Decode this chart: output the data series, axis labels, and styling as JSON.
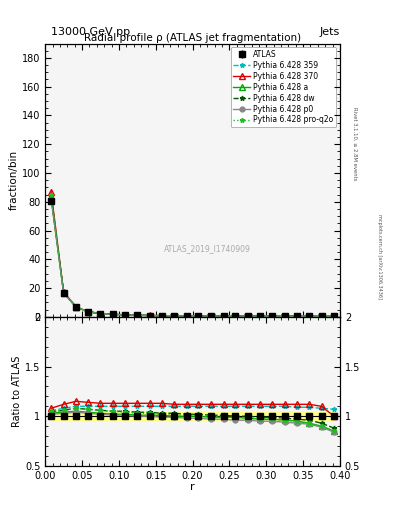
{
  "title_top": "13000 GeV pp",
  "title_top_right": "Jets",
  "title_main": "Radial profile ρ (ATLAS jet fragmentation)",
  "ylabel_main": "fraction/bin",
  "ylabel_ratio": "Ratio to ATLAS",
  "xlabel": "r",
  "watermark": "ATLAS_2019_I1740909",
  "right_label": "Rivet 3.1.10, ≥ 2.8M events",
  "right_label2": "mcplots.cern.ch [arXiv:1306.3436]",
  "r_values": [
    0.008,
    0.025,
    0.042,
    0.058,
    0.075,
    0.092,
    0.108,
    0.125,
    0.142,
    0.158,
    0.175,
    0.192,
    0.208,
    0.225,
    0.242,
    0.258,
    0.275,
    0.292,
    0.308,
    0.325,
    0.342,
    0.358,
    0.375,
    0.392
  ],
  "atlas_y": [
    80.5,
    16.5,
    6.5,
    3.5,
    2.2,
    1.7,
    1.4,
    1.1,
    0.9,
    0.8,
    0.7,
    0.65,
    0.6,
    0.55,
    0.5,
    0.48,
    0.45,
    0.42,
    0.4,
    0.38,
    0.36,
    0.34,
    0.32,
    0.3
  ],
  "atlas_yerr": [
    2.0,
    0.5,
    0.2,
    0.1,
    0.07,
    0.05,
    0.04,
    0.03,
    0.03,
    0.02,
    0.02,
    0.02,
    0.02,
    0.02,
    0.02,
    0.02,
    0.02,
    0.01,
    0.01,
    0.01,
    0.01,
    0.01,
    0.01,
    0.01
  ],
  "atlas_color": "#000000",
  "py359_y": [
    85.0,
    17.0,
    6.8,
    3.6,
    2.25,
    1.72,
    1.42,
    1.12,
    0.92,
    0.82,
    0.72,
    0.67,
    0.62,
    0.57,
    0.52,
    0.5,
    0.47,
    0.44,
    0.42,
    0.4,
    0.38,
    0.36,
    0.34,
    0.31
  ],
  "py359_color": "#00BBBB",
  "py359_label": "Pythia 6.428 359",
  "py370_y": [
    87.0,
    17.2,
    6.9,
    3.65,
    2.28,
    1.75,
    1.44,
    1.14,
    0.94,
    0.84,
    0.73,
    0.68,
    0.63,
    0.58,
    0.53,
    0.51,
    0.48,
    0.45,
    0.43,
    0.41,
    0.39,
    0.37,
    0.35,
    0.32
  ],
  "py370_color": "#DD0000",
  "py370_label": "Pythia 6.428 370",
  "pya_y": [
    83.0,
    16.8,
    6.7,
    3.55,
    2.22,
    1.7,
    1.4,
    1.1,
    0.9,
    0.8,
    0.7,
    0.65,
    0.6,
    0.55,
    0.5,
    0.48,
    0.45,
    0.42,
    0.4,
    0.38,
    0.36,
    0.34,
    0.32,
    0.29
  ],
  "pya_color": "#00AA00",
  "pya_label": "Pythia 6.428 a",
  "pydw_y": [
    84.0,
    16.9,
    6.75,
    3.58,
    2.23,
    1.71,
    1.41,
    1.11,
    0.91,
    0.81,
    0.71,
    0.66,
    0.61,
    0.56,
    0.51,
    0.49,
    0.46,
    0.43,
    0.41,
    0.39,
    0.37,
    0.35,
    0.33,
    0.3
  ],
  "pydw_color": "#005500",
  "pydw_label": "Pythia 6.428 dw",
  "pyp0_y": [
    82.0,
    16.6,
    6.6,
    3.52,
    2.2,
    1.68,
    1.39,
    1.09,
    0.89,
    0.79,
    0.69,
    0.64,
    0.59,
    0.54,
    0.49,
    0.47,
    0.44,
    0.41,
    0.39,
    0.37,
    0.35,
    0.33,
    0.31,
    0.28
  ],
  "pyp0_color": "#888888",
  "pyp0_label": "Pythia 6.428 p0",
  "pyproq2o_y": [
    84.5,
    16.8,
    6.72,
    3.57,
    2.22,
    1.7,
    1.4,
    1.1,
    0.9,
    0.8,
    0.7,
    0.65,
    0.6,
    0.55,
    0.5,
    0.48,
    0.45,
    0.42,
    0.4,
    0.38,
    0.36,
    0.34,
    0.32,
    0.29
  ],
  "pyproq2o_color": "#22BB22",
  "pyproq2o_label": "Pythia 6.428 pro-q2o",
  "ratio_359": [
    1.055,
    1.08,
    1.1,
    1.1,
    1.1,
    1.1,
    1.1,
    1.1,
    1.1,
    1.1,
    1.1,
    1.1,
    1.1,
    1.1,
    1.1,
    1.1,
    1.1,
    1.1,
    1.1,
    1.1,
    1.09,
    1.09,
    1.08,
    1.07
  ],
  "ratio_370": [
    1.08,
    1.12,
    1.15,
    1.14,
    1.13,
    1.13,
    1.13,
    1.13,
    1.13,
    1.13,
    1.12,
    1.12,
    1.12,
    1.12,
    1.12,
    1.12,
    1.12,
    1.12,
    1.12,
    1.12,
    1.12,
    1.12,
    1.1,
    1.0
  ],
  "ratio_a": [
    1.031,
    1.04,
    1.05,
    1.04,
    1.03,
    1.02,
    1.02,
    1.01,
    1.01,
    1.01,
    1.0,
    1.0,
    1.0,
    0.99,
    0.99,
    0.99,
    0.98,
    0.97,
    0.97,
    0.96,
    0.95,
    0.93,
    0.9,
    0.85
  ],
  "ratio_dw": [
    1.043,
    1.06,
    1.08,
    1.07,
    1.06,
    1.05,
    1.05,
    1.04,
    1.04,
    1.03,
    1.03,
    1.02,
    1.02,
    1.01,
    1.01,
    1.0,
    1.0,
    0.99,
    0.99,
    0.98,
    0.97,
    0.96,
    0.93,
    0.88
  ],
  "ratio_p0": [
    1.019,
    1.03,
    1.04,
    1.03,
    1.02,
    1.01,
    1.01,
    1.0,
    1.0,
    0.99,
    0.99,
    0.98,
    0.98,
    0.97,
    0.97,
    0.96,
    0.96,
    0.95,
    0.95,
    0.94,
    0.93,
    0.92,
    0.89,
    0.84
  ],
  "ratio_proq2o": [
    1.05,
    1.06,
    1.08,
    1.07,
    1.06,
    1.05,
    1.04,
    1.03,
    1.03,
    1.02,
    1.01,
    1.01,
    1.0,
    1.0,
    0.99,
    0.99,
    0.98,
    0.97,
    0.97,
    0.96,
    0.95,
    0.93,
    0.9,
    0.85
  ],
  "atlas_band_upper": [
    1.04,
    1.04,
    1.04,
    1.04,
    1.04,
    1.04,
    1.04,
    1.04,
    1.04,
    1.04,
    1.04,
    1.04,
    1.04,
    1.04,
    1.04,
    1.04,
    1.04,
    1.04,
    1.04,
    1.04,
    1.04,
    1.04,
    1.04,
    1.04
  ],
  "atlas_band_lower": [
    0.96,
    0.96,
    0.96,
    0.96,
    0.96,
    0.96,
    0.96,
    0.96,
    0.96,
    0.96,
    0.96,
    0.96,
    0.96,
    0.96,
    0.96,
    0.96,
    0.96,
    0.96,
    0.96,
    0.96,
    0.96,
    0.96,
    0.96,
    0.96
  ],
  "ylim_main": [
    0,
    190
  ],
  "ylim_ratio": [
    0.5,
    2.0
  ],
  "yticks_main": [
    0,
    20,
    40,
    60,
    80,
    100,
    120,
    140,
    160,
    180
  ],
  "yticks_ratio": [
    0.5,
    1.0,
    1.5,
    2.0
  ],
  "xlim": [
    0,
    0.4
  ],
  "bg_color": "#f5f5f5"
}
